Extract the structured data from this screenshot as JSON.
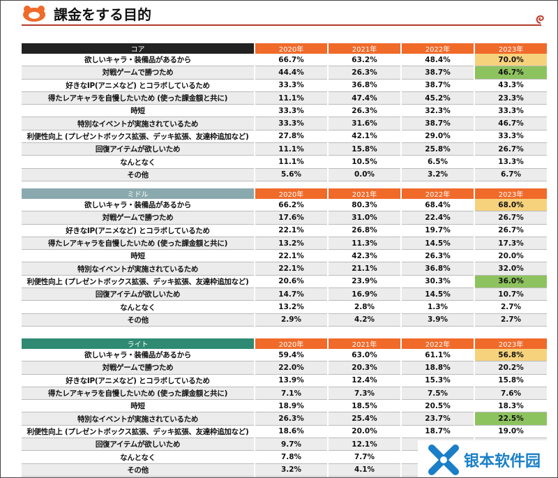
{
  "title": "課金をする目的",
  "years": [
    "2020年",
    "2021年",
    "2022年",
    "2023年"
  ],
  "row_labels": [
    "欲しいキャラ・装備品があるから",
    "対戦ゲームで勝つため",
    "好きなIP(アニメなど) とコラボしているため",
    "得たレアキャラを自慢したいため (使った課金額と共に)",
    "時短",
    "特別なイベントが実施されているため",
    "利便性向上 (プレゼントボックス拡張、デッキ拡張、友達枠追加など)",
    "回復アイテムが欲しいため",
    "なんとなく",
    "その他"
  ],
  "colors": {
    "core": "#222222",
    "middle": "#8aa9ae",
    "light": "#2e8a72",
    "year_header": "#f06a2a",
    "highlight_yellow": "#f6d27c",
    "highlight_green": "#8dc35e"
  },
  "tables": [
    {
      "segment": "コア",
      "header_color": "#222222",
      "highlights": {
        "0": "y",
        "1": "g"
      },
      "rows": [
        [
          "66.7%",
          "63.2%",
          "48.4%",
          "70.0%"
        ],
        [
          "44.4%",
          "26.3%",
          "38.7%",
          "46.7%"
        ],
        [
          "33.3%",
          "36.8%",
          "38.7%",
          "43.3%"
        ],
        [
          "11.1%",
          "47.4%",
          "45.2%",
          "23.3%"
        ],
        [
          "33.3%",
          "26.3%",
          "32.3%",
          "33.3%"
        ],
        [
          "33.3%",
          "31.6%",
          "38.7%",
          "46.7%"
        ],
        [
          "27.8%",
          "42.1%",
          "29.0%",
          "33.3%"
        ],
        [
          "11.1%",
          "15.8%",
          "25.8%",
          "26.7%"
        ],
        [
          "11.1%",
          "10.5%",
          "6.5%",
          "13.3%"
        ],
        [
          "5.6%",
          "0.0%",
          "3.2%",
          "6.7%"
        ]
      ]
    },
    {
      "segment": "ミドル",
      "header_color": "#8aa9ae",
      "highlights": {
        "0": "y",
        "6": "g"
      },
      "rows": [
        [
          "66.2%",
          "80.3%",
          "68.4%",
          "68.0%"
        ],
        [
          "17.6%",
          "31.0%",
          "22.4%",
          "26.7%"
        ],
        [
          "22.1%",
          "26.8%",
          "19.7%",
          "26.7%"
        ],
        [
          "13.2%",
          "11.3%",
          "14.5%",
          "17.3%"
        ],
        [
          "22.1%",
          "42.3%",
          "26.3%",
          "20.0%"
        ],
        [
          "22.1%",
          "21.1%",
          "36.8%",
          "32.0%"
        ],
        [
          "20.6%",
          "23.9%",
          "30.3%",
          "36.0%"
        ],
        [
          "14.7%",
          "16.9%",
          "14.5%",
          "10.7%"
        ],
        [
          "13.2%",
          "2.8%",
          "1.3%",
          "2.7%"
        ],
        [
          "2.9%",
          "4.2%",
          "3.9%",
          "2.7%"
        ]
      ]
    },
    {
      "segment": "ライト",
      "header_color": "#2e8a72",
      "highlights": {
        "0": "y",
        "5": "g"
      },
      "rows": [
        [
          "59.4%",
          "63.0%",
          "61.1%",
          "56.8%"
        ],
        [
          "22.0%",
          "20.3%",
          "18.8%",
          "20.2%"
        ],
        [
          "13.9%",
          "12.4%",
          "15.3%",
          "15.8%"
        ],
        [
          "7.1%",
          "7.3%",
          "7.5%",
          "7.6%"
        ],
        [
          "18.9%",
          "18.5%",
          "20.5%",
          "18.3%"
        ],
        [
          "26.3%",
          "25.4%",
          "23.7%",
          "22.5%"
        ],
        [
          "18.6%",
          "20.0%",
          "18.7%",
          "19.0%"
        ],
        [
          "9.7%",
          "12.1%",
          "9.1%",
          "10.8%"
        ],
        [
          "7.8%",
          "7.7%",
          "",
          ""
        ],
        [
          "3.2%",
          "4.1%",
          "",
          ""
        ]
      ]
    }
  ],
  "watermark": "银本软件园"
}
